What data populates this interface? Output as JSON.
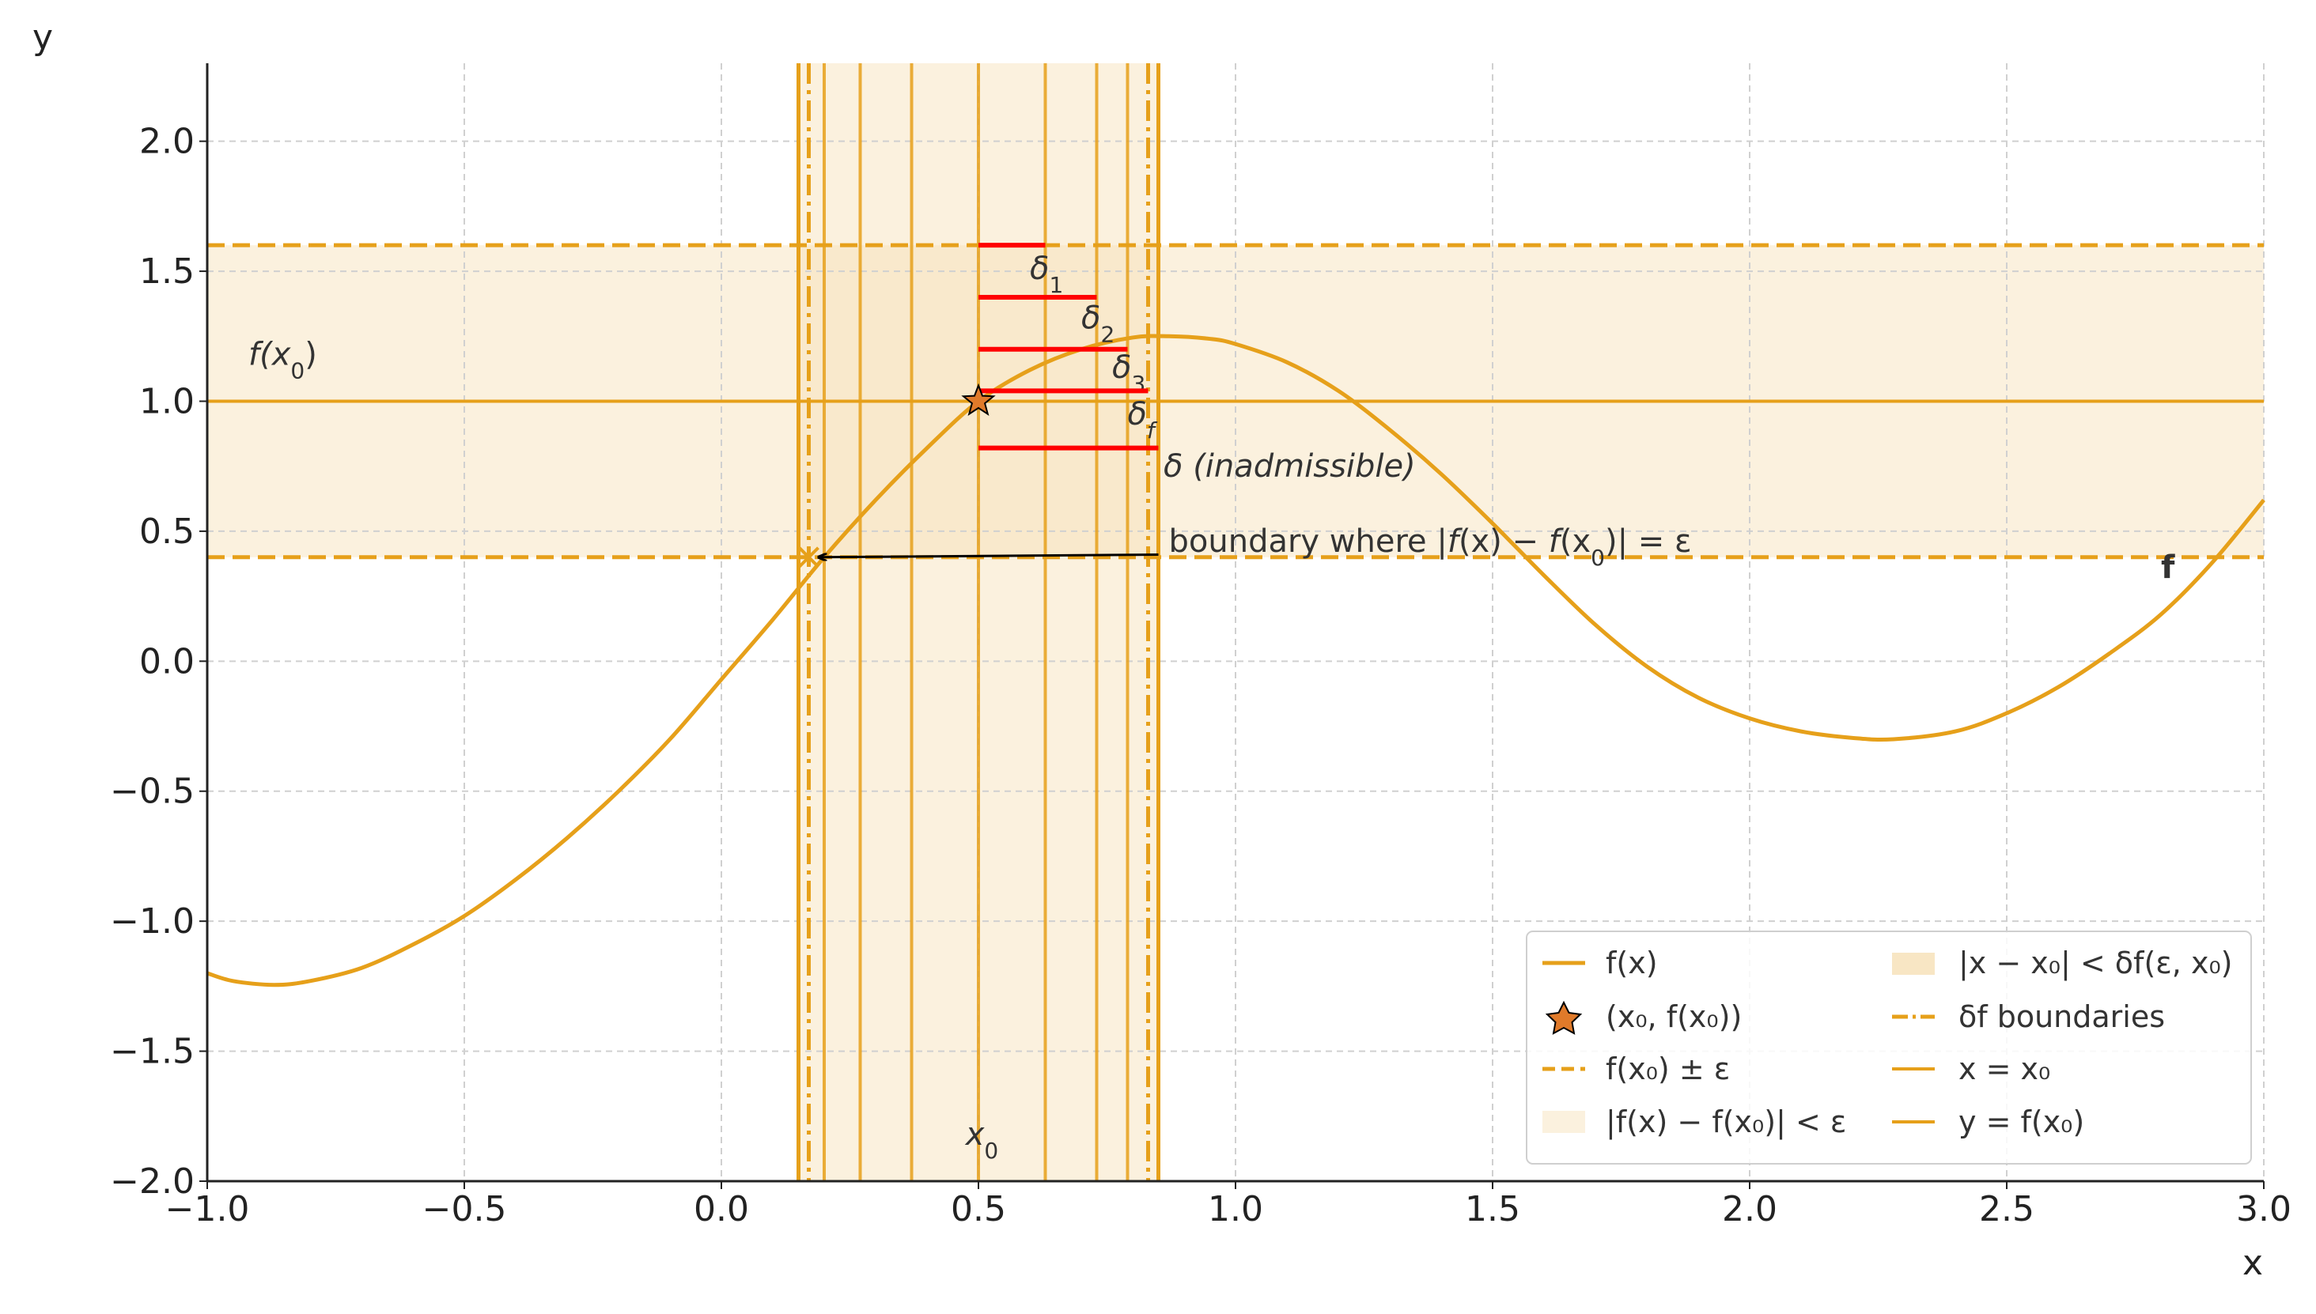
{
  "chart_data": {
    "type": "line",
    "xlabel": "x",
    "ylabel": "y",
    "xlim": [
      -1.0,
      3.0
    ],
    "ylim": [
      -2.0,
      2.3
    ],
    "grid": true,
    "x_ticks": [
      -1.0,
      -0.5,
      0.0,
      0.5,
      1.0,
      1.5,
      2.0,
      2.5,
      3.0
    ],
    "y_ticks": [
      -2.0,
      -1.5,
      -1.0,
      -0.5,
      0.0,
      0.5,
      1.0,
      1.5,
      2.0
    ],
    "x_tick_labels": [
      "−1.0",
      "−0.5",
      "0.0",
      "0.5",
      "1.0",
      "1.5",
      "2.0",
      "2.5",
      "3.0"
    ],
    "y_tick_labels": [
      "−2.0",
      "−1.5",
      "−1.0",
      "−0.5",
      "0.0",
      "0.5",
      "1.0",
      "1.5",
      "2.0"
    ],
    "colors": {
      "curve": "#E6A01A",
      "band_fill": "#FBF1DE",
      "region_fill": "#F8E6C4",
      "delta_lines": "#FF0000",
      "star": "#E07A2A",
      "arrow": "#000000",
      "grid": "#D0D0D0"
    },
    "x0": 0.5,
    "fx0": 1.0,
    "epsilon": 0.6,
    "delta_f": 0.33,
    "curve_points": [
      [
        -1.0,
        -1.2
      ],
      [
        -0.95,
        -1.23
      ],
      [
        -0.87,
        -1.245
      ],
      [
        -0.8,
        -1.23
      ],
      [
        -0.7,
        -1.18
      ],
      [
        -0.6,
        -1.09
      ],
      [
        -0.5,
        -0.98
      ],
      [
        -0.4,
        -0.84
      ],
      [
        -0.3,
        -0.68
      ],
      [
        -0.2,
        -0.5
      ],
      [
        -0.1,
        -0.3
      ],
      [
        0.0,
        -0.07
      ],
      [
        0.1,
        0.16
      ],
      [
        0.2,
        0.4
      ],
      [
        0.3,
        0.62
      ],
      [
        0.4,
        0.82
      ],
      [
        0.5,
        1.0
      ],
      [
        0.6,
        1.12
      ],
      [
        0.7,
        1.2
      ],
      [
        0.8,
        1.245
      ],
      [
        0.87,
        1.25
      ],
      [
        0.95,
        1.24
      ],
      [
        1.0,
        1.22
      ],
      [
        1.1,
        1.15
      ],
      [
        1.2,
        1.04
      ],
      [
        1.3,
        0.89
      ],
      [
        1.4,
        0.72
      ],
      [
        1.5,
        0.53
      ],
      [
        1.6,
        0.33
      ],
      [
        1.7,
        0.14
      ],
      [
        1.8,
        -0.02
      ],
      [
        1.9,
        -0.14
      ],
      [
        2.0,
        -0.22
      ],
      [
        2.1,
        -0.27
      ],
      [
        2.2,
        -0.295
      ],
      [
        2.28,
        -0.3
      ],
      [
        2.4,
        -0.27
      ],
      [
        2.5,
        -0.2
      ],
      [
        2.6,
        -0.1
      ],
      [
        2.7,
        0.03
      ],
      [
        2.8,
        0.18
      ],
      [
        2.9,
        0.38
      ],
      [
        3.0,
        0.62
      ]
    ],
    "eps_lines": [
      1.6,
      0.4
    ],
    "delta_boundaries": [
      0.17,
      0.83
    ],
    "outer_region": [
      0.15,
      0.85
    ],
    "vertical_lines": [
      0.15,
      0.2,
      0.27,
      0.37,
      0.5,
      0.63,
      0.73,
      0.79,
      0.85
    ],
    "delta_segments": [
      {
        "y": 1.6,
        "x_end": 0.63,
        "label": "δ",
        "sub": "1",
        "label_x": 0.6,
        "label_y": 1.47
      },
      {
        "y": 1.4,
        "x_end": 0.73,
        "label": "δ",
        "sub": "2",
        "label_x": 0.7,
        "label_y": 1.28
      },
      {
        "y": 1.2,
        "x_end": 0.79,
        "label": "δ",
        "sub": "3",
        "label_x": 0.76,
        "label_y": 1.09
      },
      {
        "y": 1.04,
        "x_end": 0.83,
        "label": "δ",
        "sub": "f",
        "label_x": 0.79,
        "label_y": 0.91
      },
      {
        "y": 0.82,
        "x_end": 0.85,
        "label": "δ (inadmissible)",
        "sub": "",
        "label_x": 0.86,
        "label_y": 0.71
      }
    ],
    "annotations": {
      "fx0_label": "f(x",
      "fx0_sub": "0",
      "fx0_close": ")",
      "x0_label": "x",
      "x0_sub": "0",
      "boundary_text_a": "boundary where |",
      "boundary_text_b": "f",
      "boundary_text_c": "(x) − ",
      "boundary_text_d": "f",
      "boundary_text_e": "(x",
      "boundary_text_f": "0",
      "boundary_text_g": ")| = ε",
      "f_label": "f"
    },
    "boundary_cross": [
      0.17,
      0.4
    ],
    "arrow_from": [
      0.85,
      0.41
    ],
    "arrow_to": [
      0.19,
      0.4
    ],
    "legend": {
      "items": [
        {
          "text": "f(x)"
        },
        {
          "text": "(x₀, f(x₀))"
        },
        {
          "text": "f(x₀) ± ε"
        },
        {
          "text": "|f(x) − f(x₀)| < ε"
        },
        {
          "text": "|x − x₀| < δf(ε, x₀)"
        },
        {
          "text": "δf boundaries"
        },
        {
          "text": "x = x₀"
        },
        {
          "text": "y = f(x₀)"
        }
      ]
    }
  }
}
